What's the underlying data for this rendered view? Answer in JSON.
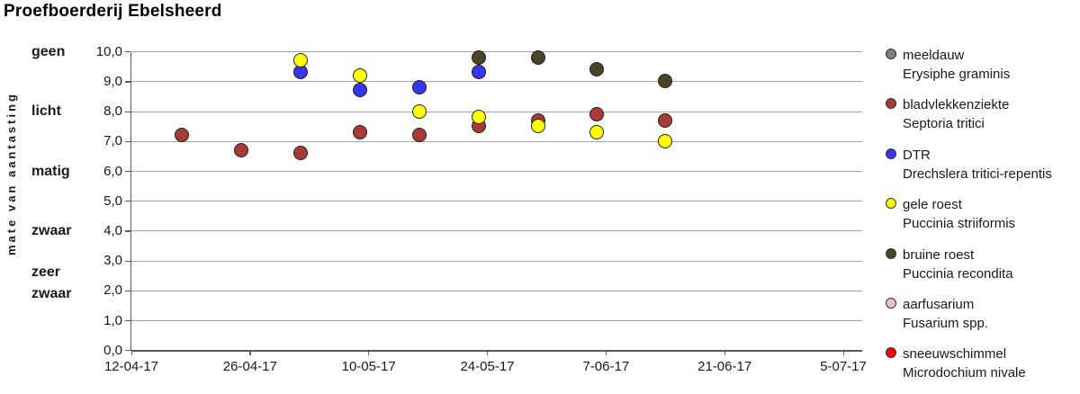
{
  "chart_data": {
    "type": "scatter",
    "title": "Proefboerderij Ebelsheerd",
    "ylabel": "mate van aantasting",
    "xlabel": "",
    "ylim": [
      0,
      10
    ],
    "ytick_labels": [
      "10,0",
      "9,0",
      "8,0",
      "7,0",
      "6,0",
      "5,0",
      "4,0",
      "3,0",
      "2,0",
      "1,0",
      "0,0"
    ],
    "x_tick_dates": [
      "12-04-17",
      "26-04-17",
      "10-05-17",
      "24-05-17",
      "7-06-17",
      "21-06-17",
      "5-07-17"
    ],
    "grid": true,
    "legend_position": "right",
    "severity_labels": [
      {
        "lines": [
          "geen"
        ],
        "value": 10
      },
      {
        "lines": [
          "licht"
        ],
        "value": 8
      },
      {
        "lines": [
          "matig"
        ],
        "value": 6
      },
      {
        "lines": [
          "zwaar"
        ],
        "value": 4
      },
      {
        "lines": [
          "zeer",
          "zwaar"
        ],
        "value": 2.25
      }
    ],
    "series": [
      {
        "name": "meeldauw",
        "latin": "Erysiphe graminis",
        "color": "#7f7f7f",
        "points": []
      },
      {
        "name": "bladvlekkenziekte",
        "latin": "Septoria tritici",
        "color": "#a73b38",
        "points": [
          {
            "date": "18-04-17",
            "value": 7.2
          },
          {
            "date": "25-04-17",
            "value": 6.7
          },
          {
            "date": "02-05-17",
            "value": 6.6
          },
          {
            "date": "09-05-17",
            "value": 7.3
          },
          {
            "date": "16-05-17",
            "value": 7.2
          },
          {
            "date": "23-05-17",
            "value": 7.5
          },
          {
            "date": "30-05-17",
            "value": 7.7
          },
          {
            "date": "06-06-17",
            "value": 7.9
          },
          {
            "date": "14-06-17",
            "value": 7.7
          }
        ]
      },
      {
        "name": "DTR",
        "latin": "Drechslera tritici-repentis",
        "color": "#3636f0",
        "points": [
          {
            "date": "02-05-17",
            "value": 9.3
          },
          {
            "date": "09-05-17",
            "value": 8.7
          },
          {
            "date": "16-05-17",
            "value": 8.8
          },
          {
            "date": "23-05-17",
            "value": 9.3
          }
        ]
      },
      {
        "name": "gele roest",
        "latin": "Puccinia striiformis",
        "color": "#ffff00",
        "points": [
          {
            "date": "02-05-17",
            "value": 9.7
          },
          {
            "date": "09-05-17",
            "value": 9.2
          },
          {
            "date": "16-05-17",
            "value": 8.0
          },
          {
            "date": "23-05-17",
            "value": 7.8
          },
          {
            "date": "30-05-17",
            "value": 7.5
          },
          {
            "date": "06-06-17",
            "value": 7.3
          },
          {
            "date": "14-06-17",
            "value": 7.0
          }
        ]
      },
      {
        "name": "bruine roest",
        "latin": "Puccinia recondita",
        "color": "#4c4426",
        "points": [
          {
            "date": "23-05-17",
            "value": 9.8
          },
          {
            "date": "30-05-17",
            "value": 9.8
          },
          {
            "date": "06-06-17",
            "value": 9.4
          },
          {
            "date": "14-06-17",
            "value": 9.0
          }
        ]
      },
      {
        "name": "aarfusarium",
        "latin": "Fusarium spp.",
        "color": "#f2bfc1",
        "points": []
      },
      {
        "name": "sneeuwschimmel",
        "latin": "Microdochium nivale",
        "color": "#ff0000",
        "points": []
      }
    ]
  }
}
